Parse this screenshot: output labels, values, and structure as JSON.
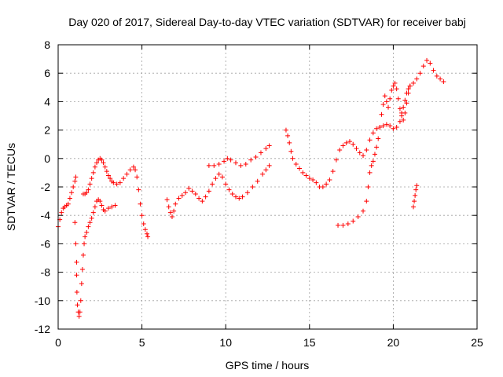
{
  "chart_data": {
    "type": "scatter",
    "title": "Day 020 of 2017, Sidereal Day-to-day VTEC variation (SDTVAR) for receiver babj",
    "xlabel": "GPS time / hours",
    "ylabel": "SDTVAR / TECUs",
    "xlim": [
      0,
      25
    ],
    "ylim": [
      -12,
      8
    ],
    "xticks": [
      0,
      5,
      10,
      15,
      20,
      25
    ],
    "yticks": [
      -12,
      -10,
      -8,
      -6,
      -4,
      -2,
      0,
      2,
      4,
      6,
      8
    ],
    "grid": true,
    "marker": "plus",
    "color": "#ff0000",
    "series": [
      {
        "points": [
          [
            0.0,
            -4.8
          ],
          [
            0.1,
            -4.3
          ],
          [
            0.2,
            -3.8
          ],
          [
            0.3,
            -3.5
          ],
          [
            0.4,
            -3.4
          ],
          [
            0.5,
            -3.3
          ],
          [
            0.6,
            -3.2
          ],
          [
            0.7,
            -2.8
          ],
          [
            0.8,
            -2.4
          ],
          [
            0.9,
            -2.0
          ],
          [
            1.0,
            -1.6
          ],
          [
            1.05,
            -1.3
          ],
          [
            1.0,
            -4.5
          ],
          [
            1.05,
            -6.0
          ],
          [
            1.1,
            -7.3
          ],
          [
            1.1,
            -8.2
          ],
          [
            1.12,
            -9.4
          ],
          [
            1.15,
            -10.3
          ],
          [
            1.2,
            -10.8
          ],
          [
            1.25,
            -11.1
          ],
          [
            1.3,
            -10.8
          ],
          [
            1.35,
            -10.0
          ],
          [
            1.4,
            -8.8
          ],
          [
            1.45,
            -7.8
          ],
          [
            1.5,
            -6.8
          ],
          [
            1.55,
            -6.0
          ],
          [
            1.6,
            -5.5
          ],
          [
            1.7,
            -5.2
          ],
          [
            1.8,
            -4.8
          ],
          [
            1.9,
            -4.5
          ],
          [
            2.0,
            -4.2
          ],
          [
            2.1,
            -3.8
          ],
          [
            2.2,
            -3.4
          ],
          [
            2.3,
            -3.0
          ],
          [
            2.4,
            -2.9
          ],
          [
            2.5,
            -3.0
          ],
          [
            2.6,
            -3.3
          ],
          [
            2.7,
            -3.6
          ],
          [
            2.8,
            -3.7
          ],
          [
            3.0,
            -3.5
          ],
          [
            3.2,
            -3.4
          ],
          [
            3.4,
            -3.3
          ],
          [
            1.5,
            -2.5
          ],
          [
            1.6,
            -2.5
          ],
          [
            1.7,
            -2.4
          ],
          [
            1.8,
            -2.2
          ],
          [
            1.9,
            -1.8
          ],
          [
            2.0,
            -1.4
          ],
          [
            2.1,
            -1.0
          ],
          [
            2.2,
            -0.6
          ],
          [
            2.3,
            -0.3
          ],
          [
            2.4,
            -0.1
          ],
          [
            2.5,
            0.0
          ],
          [
            2.6,
            -0.1
          ],
          [
            2.7,
            -0.3
          ],
          [
            2.8,
            -0.6
          ],
          [
            2.9,
            -0.9
          ],
          [
            3.0,
            -1.2
          ],
          [
            3.1,
            -1.4
          ],
          [
            3.2,
            -1.6
          ],
          [
            3.3,
            -1.7
          ],
          [
            3.5,
            -1.8
          ],
          [
            3.7,
            -1.7
          ],
          [
            3.9,
            -1.4
          ],
          [
            4.1,
            -1.1
          ],
          [
            4.3,
            -0.8
          ],
          [
            4.5,
            -0.6
          ],
          [
            4.6,
            -0.8
          ],
          [
            4.7,
            -1.3
          ],
          [
            4.8,
            -2.2
          ],
          [
            4.9,
            -3.2
          ],
          [
            5.0,
            -4.0
          ],
          [
            5.1,
            -4.6
          ],
          [
            5.2,
            -5.0
          ],
          [
            5.3,
            -5.3
          ],
          [
            5.35,
            -5.5
          ],
          [
            6.5,
            -2.9
          ],
          [
            6.6,
            -3.4
          ],
          [
            6.7,
            -3.8
          ],
          [
            6.8,
            -4.1
          ],
          [
            6.9,
            -3.7
          ],
          [
            7.0,
            -3.2
          ],
          [
            7.2,
            -2.8
          ],
          [
            7.4,
            -2.6
          ],
          [
            7.6,
            -2.4
          ],
          [
            7.8,
            -2.1
          ],
          [
            8.0,
            -2.3
          ],
          [
            8.2,
            -2.5
          ],
          [
            8.4,
            -2.8
          ],
          [
            8.6,
            -3.0
          ],
          [
            8.8,
            -2.7
          ],
          [
            9.0,
            -2.3
          ],
          [
            9.2,
            -1.8
          ],
          [
            9.4,
            -1.4
          ],
          [
            9.6,
            -1.1
          ],
          [
            9.8,
            -1.3
          ],
          [
            10.0,
            -1.8
          ],
          [
            10.2,
            -2.2
          ],
          [
            10.4,
            -2.5
          ],
          [
            10.6,
            -2.7
          ],
          [
            10.8,
            -2.8
          ],
          [
            11.0,
            -2.7
          ],
          [
            11.3,
            -2.4
          ],
          [
            11.6,
            -2.0
          ],
          [
            11.9,
            -1.6
          ],
          [
            12.2,
            -1.1
          ],
          [
            12.4,
            -0.8
          ],
          [
            12.6,
            -0.5
          ],
          [
            9.0,
            -0.5
          ],
          [
            9.3,
            -0.5
          ],
          [
            9.6,
            -0.4
          ],
          [
            9.9,
            -0.2
          ],
          [
            10.1,
            0.0
          ],
          [
            10.3,
            -0.1
          ],
          [
            10.6,
            -0.3
          ],
          [
            10.9,
            -0.5
          ],
          [
            11.2,
            -0.4
          ],
          [
            11.5,
            -0.1
          ],
          [
            11.8,
            0.1
          ],
          [
            12.1,
            0.4
          ],
          [
            12.4,
            0.7
          ],
          [
            12.6,
            0.9
          ],
          [
            13.6,
            2.0
          ],
          [
            13.7,
            1.6
          ],
          [
            13.8,
            1.1
          ],
          [
            13.9,
            0.5
          ],
          [
            14.0,
            0.0
          ],
          [
            14.2,
            -0.4
          ],
          [
            14.4,
            -0.7
          ],
          [
            14.6,
            -1.0
          ],
          [
            14.8,
            -1.2
          ],
          [
            15.0,
            -1.4
          ],
          [
            15.2,
            -1.5
          ],
          [
            15.4,
            -1.7
          ],
          [
            15.6,
            -2.0
          ],
          [
            15.8,
            -2.0
          ],
          [
            16.0,
            -1.8
          ],
          [
            16.2,
            -1.5
          ],
          [
            16.4,
            -0.9
          ],
          [
            16.6,
            -0.1
          ],
          [
            16.8,
            0.6
          ],
          [
            17.0,
            0.9
          ],
          [
            17.2,
            1.1
          ],
          [
            17.4,
            1.2
          ],
          [
            17.6,
            1.0
          ],
          [
            17.8,
            0.7
          ],
          [
            18.0,
            0.4
          ],
          [
            18.2,
            0.2
          ],
          [
            18.4,
            0.6
          ],
          [
            18.6,
            1.3
          ],
          [
            18.8,
            1.8
          ],
          [
            19.0,
            2.1
          ],
          [
            19.2,
            2.2
          ],
          [
            19.4,
            2.3
          ],
          [
            19.6,
            2.4
          ],
          [
            19.8,
            2.3
          ],
          [
            20.0,
            2.1
          ],
          [
            20.2,
            2.2
          ],
          [
            20.4,
            2.6
          ],
          [
            20.5,
            3.2
          ],
          [
            20.6,
            3.6
          ],
          [
            20.7,
            4.1
          ],
          [
            20.8,
            4.6
          ],
          [
            20.9,
            4.9
          ],
          [
            21.0,
            5.1
          ],
          [
            21.2,
            5.3
          ],
          [
            21.4,
            5.6
          ],
          [
            21.6,
            6.0
          ],
          [
            21.8,
            6.5
          ],
          [
            22.0,
            6.9
          ],
          [
            22.2,
            6.7
          ],
          [
            22.4,
            6.2
          ],
          [
            22.6,
            5.8
          ],
          [
            22.8,
            5.6
          ],
          [
            23.0,
            5.4
          ],
          [
            16.7,
            -4.7
          ],
          [
            17.0,
            -4.7
          ],
          [
            17.3,
            -4.6
          ],
          [
            17.6,
            -4.4
          ],
          [
            17.9,
            -4.1
          ],
          [
            18.2,
            -3.7
          ],
          [
            18.4,
            -3.0
          ],
          [
            18.5,
            -2.0
          ],
          [
            18.6,
            -1.0
          ],
          [
            18.7,
            -0.5
          ],
          [
            18.8,
            -0.2
          ],
          [
            18.9,
            0.3
          ],
          [
            19.0,
            0.8
          ],
          [
            19.1,
            1.4
          ],
          [
            19.2,
            2.2
          ],
          [
            19.3,
            3.1
          ],
          [
            19.4,
            3.8
          ],
          [
            19.5,
            4.4
          ],
          [
            19.6,
            4.0
          ],
          [
            19.7,
            3.6
          ],
          [
            19.8,
            4.2
          ],
          [
            19.9,
            4.8
          ],
          [
            20.0,
            5.1
          ],
          [
            20.1,
            5.3
          ],
          [
            20.2,
            4.9
          ],
          [
            20.3,
            4.2
          ],
          [
            20.4,
            3.5
          ],
          [
            20.5,
            3.0
          ],
          [
            20.6,
            2.7
          ],
          [
            20.7,
            3.2
          ],
          [
            20.8,
            3.9
          ],
          [
            20.9,
            4.6
          ],
          [
            21.0,
            5.1
          ],
          [
            21.2,
            -3.4
          ],
          [
            21.25,
            -3.0
          ],
          [
            21.3,
            -2.6
          ],
          [
            21.35,
            -2.2
          ],
          [
            21.4,
            -1.9
          ]
        ]
      }
    ]
  }
}
